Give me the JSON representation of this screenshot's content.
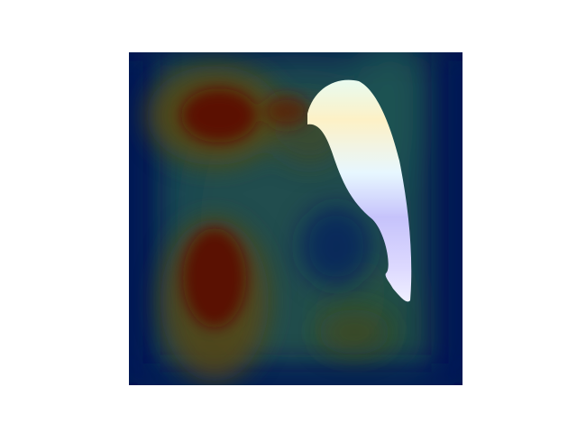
{
  "figure": {
    "kind": "attention-heatmap-overlay",
    "colormap": "jet",
    "overlay_colors": {
      "low": "#02124f",
      "mid": "#1e5a5a",
      "high": "#5a0e04",
      "highlight_top": "#fdf6c8",
      "highlight_mid": "#e6f5ff",
      "highlight_bottom": "#c9bffb"
    },
    "highlighted_region": "bright-blob-right-of-center"
  }
}
